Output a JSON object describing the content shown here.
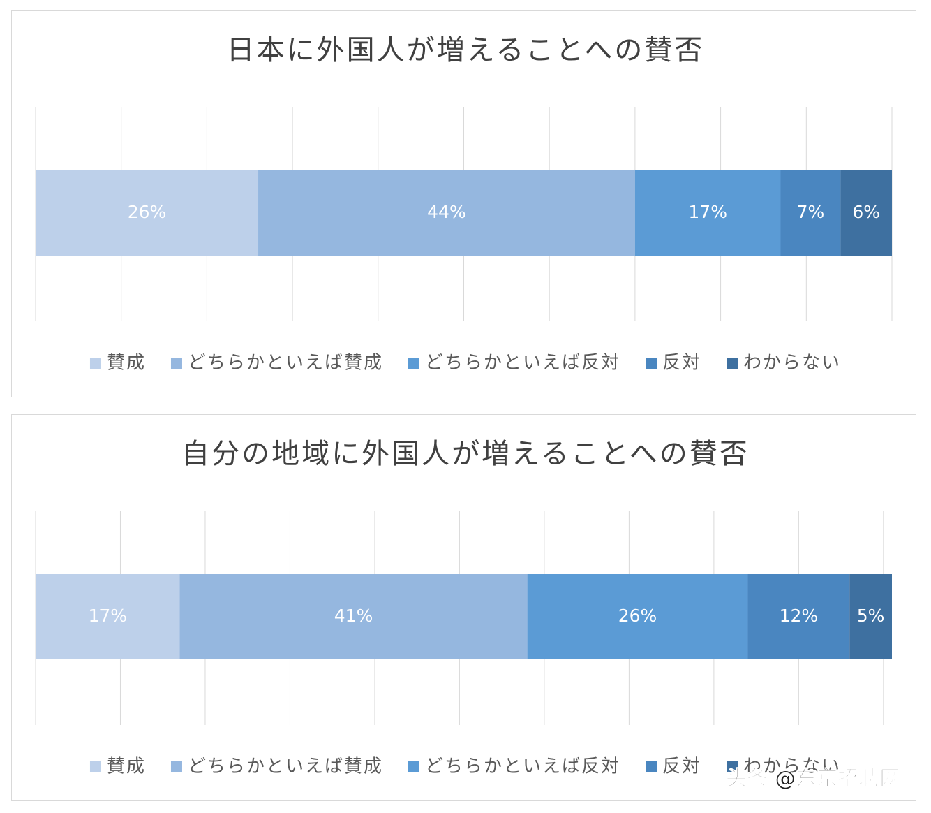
{
  "chart_data": [
    {
      "type": "bar",
      "title": "日本に外国人が増えることへの賛否",
      "series": [
        {
          "name": "賛成",
          "color": "#bdd0ea",
          "values": [
            26
          ],
          "value_labels": [
            "26%"
          ]
        },
        {
          "name": "どちらかといえば賛成",
          "color": "#95b7df",
          "values": [
            44
          ],
          "value_labels": [
            "44%"
          ]
        },
        {
          "name": "どちらかといえば反対",
          "color": "#5b9bd5",
          "values": [
            17
          ],
          "value_labels": [
            "17%"
          ]
        },
        {
          "name": "反対",
          "color": "#4a86c0",
          "values": [
            7
          ],
          "value_labels": [
            "7%"
          ]
        },
        {
          "name": "わからない",
          "color": "#3e70a0",
          "values": [
            6
          ],
          "value_labels": [
            "6%"
          ]
        }
      ],
      "xlim": [
        0,
        100
      ],
      "xticks": [
        0,
        10,
        20,
        30,
        40,
        50,
        60,
        70,
        80,
        90,
        100
      ],
      "grid": true,
      "legend": "bottom"
    },
    {
      "type": "bar",
      "title": "自分の地域に外国人が増えることへの賛否",
      "series": [
        {
          "name": "賛成",
          "color": "#bdd0ea",
          "values": [
            17
          ],
          "value_labels": [
            "17%"
          ]
        },
        {
          "name": "どちらかといえば賛成",
          "color": "#95b7df",
          "values": [
            41
          ],
          "value_labels": [
            "41%"
          ]
        },
        {
          "name": "どちらかといえば反対",
          "color": "#5b9bd5",
          "values": [
            26
          ],
          "value_labels": [
            "26%"
          ]
        },
        {
          "name": "反対",
          "color": "#4a86c0",
          "values": [
            12
          ],
          "value_labels": [
            "12%"
          ]
        },
        {
          "name": "わからない",
          "color": "#3e70a0",
          "values": [
            5
          ],
          "value_labels": [
            "5%"
          ]
        }
      ],
      "xlim": [
        0,
        101
      ],
      "xticks": [
        0,
        10,
        20,
        30,
        40,
        50,
        60,
        70,
        80,
        90,
        100
      ],
      "grid": true,
      "legend": "bottom"
    }
  ],
  "watermark": "头条 @东京招聘网"
}
